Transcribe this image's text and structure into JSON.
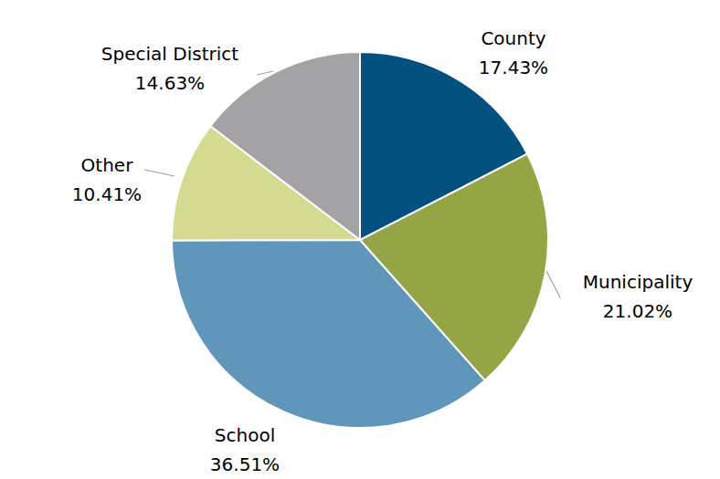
{
  "chart_data": {
    "type": "pie",
    "categories": [
      "County",
      "Municipality",
      "School",
      "Other",
      "Special District"
    ],
    "values": [
      17.43,
      21.02,
      36.51,
      10.41,
      14.63
    ],
    "value_labels": [
      "17.43%",
      "21.02%",
      "36.51%",
      "10.41%",
      "14.63%"
    ],
    "colors": [
      "#02517e",
      "#94a545",
      "#6096ba",
      "#d4da90",
      "#a3a3a5"
    ],
    "data_labels": true
  }
}
